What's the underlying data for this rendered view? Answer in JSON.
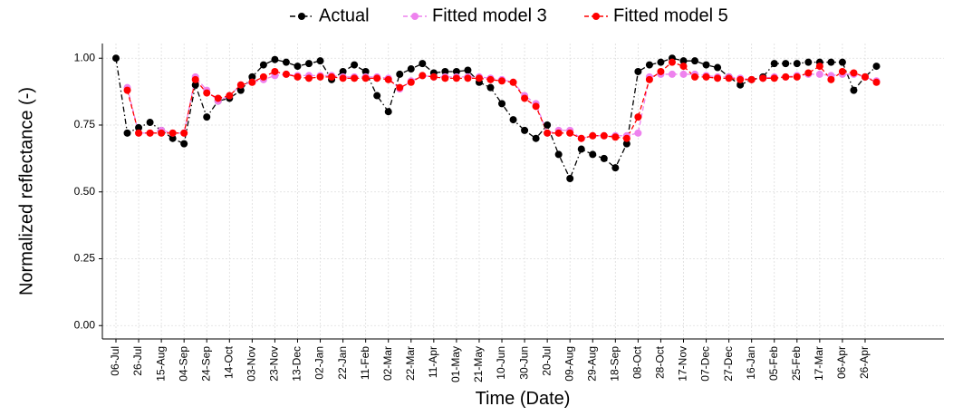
{
  "chart_data": {
    "type": "line",
    "x_label": "Time (Date)",
    "y_label": "Normalized reflectance (-)",
    "categories": [
      "06-Jul",
      null,
      "26-Jul",
      null,
      "15-Aug",
      null,
      "04-Sep",
      null,
      "24-Sep",
      null,
      "14-Oct",
      null,
      "03-Nov",
      null,
      "23-Nov",
      null,
      "13-Dec",
      null,
      "02-Jan",
      null,
      "22-Jan",
      null,
      "11-Feb",
      null,
      "02-Mar",
      null,
      "22-Mar",
      null,
      "11-Apr",
      null,
      "01-May",
      null,
      "21-May",
      null,
      "10-Jun",
      null,
      "30-Jun",
      null,
      "20-Jul",
      null,
      "09-Aug",
      null,
      "29-Aug",
      null,
      "18-Sep",
      null,
      "08-Oct",
      null,
      "28-Oct",
      null,
      "17-Nov",
      null,
      "07-Dec",
      null,
      "27-Dec",
      null,
      "16-Jan",
      null,
      "05-Feb",
      null,
      "25-Feb",
      null,
      "17-Mar",
      null,
      "06-Apr",
      null,
      "26-Apr",
      null
    ],
    "series": [
      {
        "name": "Actual",
        "color": "#000000",
        "values": [
          1.0,
          0.72,
          0.74,
          0.76,
          0.73,
          0.7,
          0.68,
          0.9,
          0.78,
          0.84,
          0.85,
          0.88,
          0.93,
          0.975,
          0.995,
          0.985,
          0.97,
          0.98,
          0.99,
          0.92,
          0.95,
          0.975,
          0.95,
          0.86,
          0.8,
          0.94,
          0.96,
          0.98,
          0.945,
          0.95,
          0.95,
          0.955,
          0.91,
          0.89,
          0.83,
          0.77,
          0.73,
          0.7,
          0.75,
          0.64,
          0.55,
          0.66,
          0.64,
          0.625,
          0.59,
          0.68,
          0.95,
          0.975,
          0.985,
          1.0,
          0.99,
          0.99,
          0.975,
          0.965,
          0.93,
          0.9,
          0.92,
          0.93,
          0.98,
          0.98,
          0.98,
          0.985,
          0.985,
          0.985,
          0.985,
          0.88,
          0.93,
          0.97
        ]
      },
      {
        "name": "Fitted model 3",
        "color": "#ee82ee",
        "values": [
          null,
          0.89,
          0.72,
          0.72,
          0.73,
          0.72,
          0.72,
          0.93,
          0.88,
          0.84,
          0.86,
          0.9,
          0.91,
          0.92,
          0.935,
          0.94,
          0.935,
          0.935,
          0.935,
          0.935,
          0.93,
          0.93,
          0.93,
          0.93,
          0.925,
          0.885,
          0.915,
          0.935,
          0.93,
          0.93,
          0.93,
          0.93,
          0.93,
          0.925,
          0.92,
          0.91,
          0.86,
          0.83,
          0.72,
          0.73,
          0.73,
          0.7,
          0.71,
          0.71,
          0.71,
          0.71,
          0.72,
          0.93,
          0.94,
          0.94,
          0.94,
          0.94,
          0.935,
          0.93,
          0.93,
          0.925,
          0.92,
          0.925,
          0.93,
          0.93,
          0.935,
          0.94,
          0.94,
          0.935,
          0.94,
          0.94,
          0.93,
          0.915
        ]
      },
      {
        "name": "Fitted model 5",
        "color": "#ff0000",
        "values": [
          null,
          0.88,
          0.72,
          0.72,
          0.72,
          0.72,
          0.72,
          0.92,
          0.87,
          0.85,
          0.86,
          0.9,
          0.91,
          0.93,
          0.95,
          0.94,
          0.93,
          0.925,
          0.93,
          0.93,
          0.925,
          0.925,
          0.925,
          0.925,
          0.92,
          0.89,
          0.91,
          0.935,
          0.93,
          0.925,
          0.925,
          0.925,
          0.925,
          0.92,
          0.915,
          0.91,
          0.85,
          0.82,
          0.72,
          0.72,
          0.72,
          0.7,
          0.71,
          0.71,
          0.705,
          0.7,
          0.78,
          0.92,
          0.95,
          0.985,
          0.97,
          0.93,
          0.93,
          0.925,
          0.925,
          0.92,
          0.92,
          0.925,
          0.925,
          0.93,
          0.93,
          0.945,
          0.97,
          0.92,
          0.95,
          0.945,
          0.93,
          0.91
        ]
      }
    ],
    "ylim": [
      -0.05,
      1.055
    ],
    "yticks": [
      {
        "value": 0,
        "label": "0.00"
      },
      {
        "value": 0.25,
        "label": "0.25"
      },
      {
        "value": 0.5,
        "label": "0.50"
      },
      {
        "value": 0.75,
        "label": "0.75"
      },
      {
        "value": 1,
        "label": "1.00"
      }
    ],
    "grid": true,
    "legend": "top"
  }
}
